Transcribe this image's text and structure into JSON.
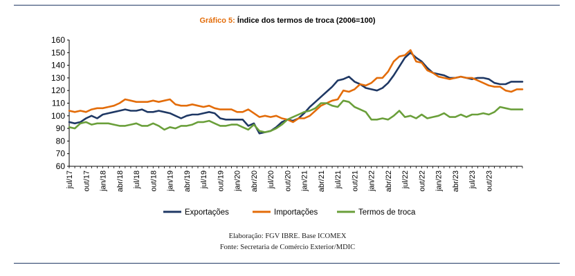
{
  "header": {
    "title_prefix": "Gráfico 5:",
    "title_text": "Índice dos termos de troca (2006=100)"
  },
  "footer": {
    "line1": "Elaboração: FGV IBRE. Base ICOMEX",
    "line2": "Fonte: Secretaria de Comércio Exterior/MDIC"
  },
  "chart_data": {
    "type": "line",
    "title": "Índice dos termos de troca (2006=100)",
    "ylim": [
      60,
      160
    ],
    "yticks": [
      60,
      70,
      80,
      90,
      100,
      110,
      120,
      130,
      140,
      150,
      160
    ],
    "grid": false,
    "legend_position": "bottom",
    "x_tick_labels": [
      "jul/17",
      "out/17",
      "jan/18",
      "abr/18",
      "jul/18",
      "out/18",
      "jan/19",
      "abr/19",
      "jul/19",
      "out/19",
      "jan/20",
      "abr/20",
      "jul/20",
      "out/20",
      "jan/21",
      "abr/21",
      "jul/21",
      "out/21",
      "jan/22",
      "abr/22",
      "jul/22",
      "out/22",
      "jan/23",
      "abr/23",
      "jul/23",
      "out/23"
    ],
    "x_months_start": "jul/17",
    "series": [
      {
        "name": "Exportações",
        "color": "#1f3864",
        "values": [
          95,
          94,
          95,
          98,
          100,
          98,
          101,
          102,
          103,
          104,
          105,
          104,
          104,
          105,
          103,
          103,
          104,
          103,
          102,
          100,
          98,
          100,
          101,
          101,
          102,
          103,
          102,
          98,
          97,
          97,
          97,
          97,
          92,
          94,
          86,
          87,
          88,
          91,
          95,
          97,
          96,
          98,
          102,
          107,
          111,
          115,
          119,
          123,
          128,
          129,
          131,
          127,
          125,
          122,
          121,
          120,
          122,
          126,
          132,
          139,
          146,
          150,
          146,
          143,
          138,
          134,
          133,
          132,
          130,
          130,
          131,
          130,
          129,
          130,
          130,
          129,
          126,
          125,
          125,
          127,
          127,
          127
        ],
        "note": "monthly values jul/17 to oct/23 (approx. readings)"
      },
      {
        "name": "Importações",
        "color": "#e36c09",
        "values": [
          104,
          103,
          104,
          103,
          105,
          106,
          106,
          107,
          108,
          110,
          113,
          112,
          111,
          111,
          111,
          112,
          111,
          112,
          113,
          109,
          108,
          108,
          109,
          108,
          107,
          108,
          106,
          105,
          105,
          105,
          103,
          103,
          105,
          102,
          99,
          100,
          99,
          100,
          98,
          97,
          95,
          98,
          98,
          100,
          104,
          108,
          110,
          112,
          113,
          120,
          119,
          121,
          125,
          124,
          126,
          130,
          130,
          135,
          143,
          147,
          148,
          152,
          143,
          142,
          136,
          134,
          131,
          130,
          129,
          130,
          131,
          130,
          130,
          128,
          126,
          124,
          123,
          123,
          120,
          119,
          121,
          121
        ],
        "note": "monthly values jul/17 to oct/23 (approx. readings)"
      },
      {
        "name": "Termos de troca",
        "color": "#6a9f3a",
        "values": [
          91,
          90,
          94,
          95,
          93,
          94,
          94,
          94,
          93,
          92,
          92,
          93,
          94,
          92,
          92,
          94,
          92,
          89,
          91,
          90,
          92,
          92,
          93,
          95,
          95,
          96,
          94,
          92,
          92,
          93,
          93,
          91,
          89,
          93,
          88,
          87,
          88,
          90,
          93,
          97,
          99,
          101,
          103,
          104,
          106,
          110,
          110,
          108,
          107,
          112,
          111,
          107,
          105,
          103,
          97,
          97,
          98,
          97,
          100,
          104,
          99,
          100,
          98,
          101,
          98,
          99,
          100,
          102,
          99,
          99,
          101,
          99,
          101,
          101,
          102,
          101,
          103,
          107,
          106,
          105,
          105,
          105
        ],
        "note": "monthly values jul/17 to oct/23 (approx. readings)"
      }
    ]
  }
}
